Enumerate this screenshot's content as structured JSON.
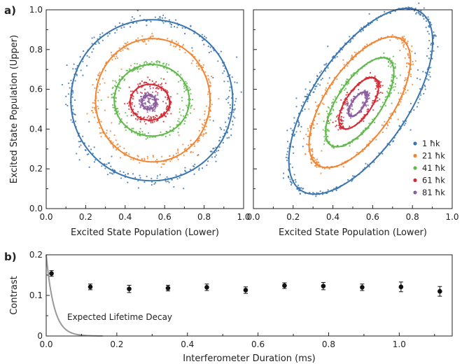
{
  "chart_data": [
    {
      "panel_label": "a)",
      "type": "scatter",
      "xlabel": "Excited State Population (Lower)",
      "ylabel": "Excited State Population (Upper)",
      "xlim": [
        0.0,
        1.0
      ],
      "ylim": [
        0.0,
        1.0
      ],
      "x_ticks": [
        "0.0",
        "0.2",
        "0.4",
        "0.6",
        "0.8",
        "1.0"
      ],
      "y_ticks": [
        "0.0",
        "0.2",
        "0.4",
        "0.6",
        "0.8",
        "1.0"
      ],
      "grid": false,
      "series": [
        {
          "name": "1 ħk",
          "color": "#3b75af",
          "center": [
            0.535,
            0.545
          ],
          "radius_x": 0.41,
          "radius_y": 0.405,
          "tilt_deg": 0
        },
        {
          "name": "21 ħk",
          "color": "#ef8636",
          "center": [
            0.54,
            0.545
          ],
          "radius_x": 0.29,
          "radius_y": 0.31,
          "tilt_deg": 0
        },
        {
          "name": "41 ħk",
          "color": "#5fb84a",
          "center": [
            0.535,
            0.545
          ],
          "radius_x": 0.19,
          "radius_y": 0.18,
          "tilt_deg": 0
        },
        {
          "name": "61 ħk",
          "color": "#d42a34",
          "center": [
            0.525,
            0.535
          ],
          "radius_x": 0.1,
          "radius_y": 0.09,
          "tilt_deg": 0
        },
        {
          "name": "81 ħk",
          "color": "#8d5e9f",
          "center": [
            0.52,
            0.535
          ],
          "radius_x": 0.035,
          "radius_y": 0.035,
          "tilt_deg": 0
        }
      ]
    },
    {
      "type": "scatter",
      "xlabel": "Excited State Population (Lower)",
      "xlim": [
        0.0,
        1.0
      ],
      "ylim": [
        0.0,
        1.0
      ],
      "x_ticks": [
        "0.0",
        "0.2",
        "0.4",
        "0.6",
        "0.8",
        "1.0"
      ],
      "grid": false,
      "legend_position": "bottom-right",
      "series": [
        {
          "name": "1 ħk",
          "color": "#3b75af",
          "center": [
            0.54,
            0.54
          ],
          "radius_major": 0.54,
          "radius_minor": 0.24,
          "tilt_deg": 56
        },
        {
          "name": "21 ħk",
          "color": "#ef8636",
          "center": [
            0.535,
            0.535
          ],
          "radius_major": 0.38,
          "radius_minor": 0.17,
          "tilt_deg": 56
        },
        {
          "name": "41 ħk",
          "color": "#5fb84a",
          "center": [
            0.535,
            0.535
          ],
          "radius_major": 0.26,
          "radius_minor": 0.11,
          "tilt_deg": 56
        },
        {
          "name": "61 ħk",
          "color": "#d42a34",
          "center": [
            0.53,
            0.53
          ],
          "radius_major": 0.15,
          "radius_minor": 0.065,
          "tilt_deg": 56
        },
        {
          "name": "81 ħk",
          "color": "#8d5e9f",
          "center": [
            0.525,
            0.525
          ],
          "radius_major": 0.07,
          "radius_minor": 0.03,
          "tilt_deg": 56
        }
      ]
    },
    {
      "panel_label": "b)",
      "type": "scatter",
      "xlabel": "Interferometer Duration (ms)",
      "ylabel": "Contrast",
      "xlim": [
        0.0,
        1.15
      ],
      "ylim": [
        0.0,
        0.2
      ],
      "x_ticks": [
        "0.0",
        "0.2",
        "0.4",
        "0.6",
        "0.8",
        "1.0"
      ],
      "y_ticks": [
        "0",
        "0.1",
        "0.2"
      ],
      "grid": false,
      "x": [
        0.015,
        0.125,
        0.235,
        0.345,
        0.455,
        0.565,
        0.675,
        0.785,
        0.895,
        1.005,
        1.115
      ],
      "y": [
        0.154,
        0.121,
        0.116,
        0.118,
        0.12,
        0.113,
        0.124,
        0.123,
        0.12,
        0.121,
        0.11
      ],
      "yerr": [
        0.007,
        0.007,
        0.009,
        0.007,
        0.008,
        0.008,
        0.007,
        0.009,
        0.008,
        0.012,
        0.012
      ],
      "annotation": "Expected Lifetime Decay",
      "decay_curve": {
        "color": "#999999",
        "start_value": 0.2,
        "time_constant_ms": 0.022
      }
    }
  ]
}
